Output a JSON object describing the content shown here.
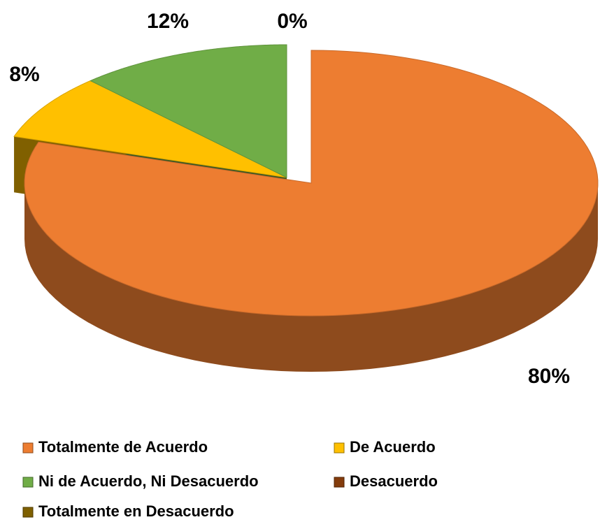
{
  "chart_data": {
    "type": "pie",
    "categories": [
      "Totalmente de Acuerdo",
      "De Acuerdo",
      "Ni de Acuerdo, Ni Desacuerdo",
      "Desacuerdo",
      "Totalmente en Desacuerdo"
    ],
    "values": [
      80,
      8,
      12,
      0,
      0
    ],
    "value_labels": [
      "80%",
      "8%",
      "12%",
      "0%",
      null
    ],
    "colors": [
      "#ED7D31",
      "#FFC000",
      "#70AD47",
      "#843C0C",
      "#7F6000"
    ],
    "legend": "bottom"
  }
}
